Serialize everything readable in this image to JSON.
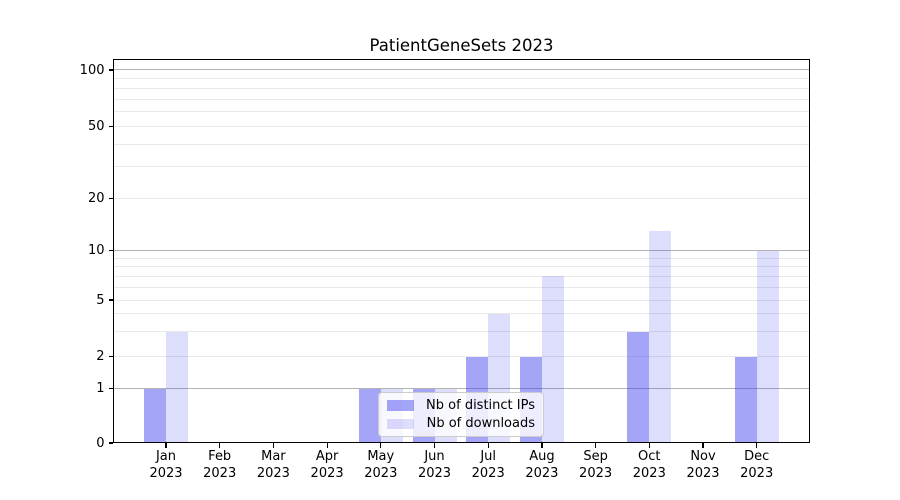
{
  "title": "PatientGeneSets 2023",
  "chart_data": {
    "type": "bar",
    "categories": [
      "Jan 2023",
      "Feb 2023",
      "Mar 2023",
      "Apr 2023",
      "May 2023",
      "Jun 2023",
      "Jul 2023",
      "Aug 2023",
      "Sep 2023",
      "Oct 2023",
      "Nov 2023",
      "Dec 2023"
    ],
    "series": [
      {
        "name": "Nb of distinct IPs",
        "color": "rgba(64,64,240,0.47)",
        "values": [
          1,
          0,
          0,
          0,
          1,
          1,
          2,
          2,
          0,
          3,
          0,
          2
        ]
      },
      {
        "name": "Nb of downloads",
        "color": "rgba(64,64,240,0.18)",
        "values": [
          3,
          0,
          0,
          0,
          1,
          1,
          4,
          7,
          0,
          13,
          0,
          10
        ]
      }
    ],
    "title": "PatientGeneSets 2023",
    "xlabel": "",
    "ylabel": "",
    "yscale": "log-like",
    "ylim": [
      0,
      100
    ],
    "ytick_labels": [
      "100",
      "50",
      "20",
      "10",
      "5",
      "2",
      "1",
      "0"
    ],
    "ytick_values": [
      100,
      50,
      20,
      10,
      5,
      2,
      1,
      0
    ],
    "major_grid_values": [
      1,
      10,
      100
    ],
    "minor_grid_values": [
      2,
      3,
      4,
      5,
      6,
      7,
      8,
      9,
      20,
      30,
      40,
      50,
      60,
      70,
      80,
      90
    ],
    "grid": "on",
    "legend_position": "lower-center-inside",
    "colors": {
      "major_grid": "#b2b2b2",
      "minor_grid": "#e9e9e9",
      "spine": "#000000",
      "bar_ips_rendered": "#a8a8f8",
      "bar_downloads_rendered": "#dddcfa"
    }
  }
}
